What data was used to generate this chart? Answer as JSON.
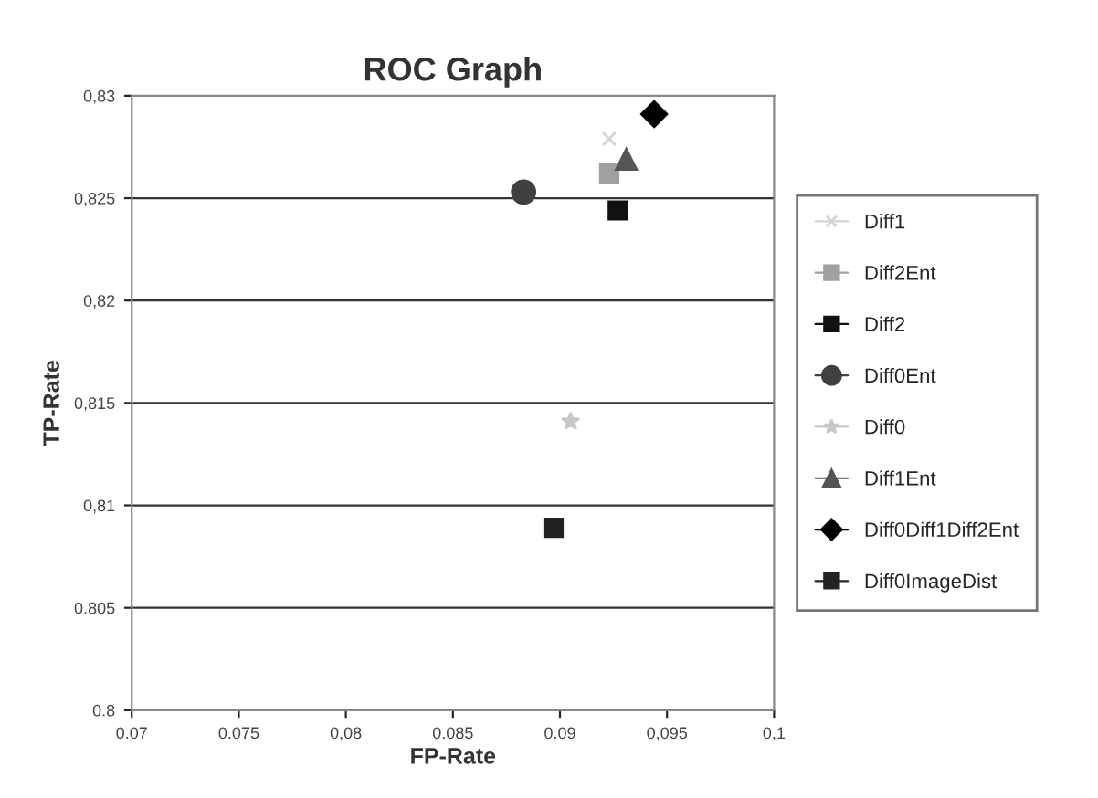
{
  "chart_data": {
    "type": "scatter",
    "title": "ROC Graph",
    "xlabel": "FP-Rate",
    "ylabel": "TP-Rate",
    "xlim": [
      0.07,
      0.1
    ],
    "xticks": [
      {
        "value": 0.07,
        "label": "0.07"
      },
      {
        "value": 0.075,
        "label": "0.075"
      },
      {
        "value": 0.08,
        "label": "0,08"
      },
      {
        "value": 0.085,
        "label": "0.085"
      },
      {
        "value": 0.09,
        "label": "0.09"
      },
      {
        "value": 0.095,
        "label": "0,095"
      },
      {
        "value": 0.1,
        "label": "0,1"
      }
    ],
    "ylim": [
      0.8,
      0.83
    ],
    "yticks": [
      {
        "value": 0.8,
        "label": "0.8"
      },
      {
        "value": 0.805,
        "label": "0.805"
      },
      {
        "value": 0.81,
        "label": "0,81"
      },
      {
        "value": 0.815,
        "label": "0,815"
      },
      {
        "value": 0.82,
        "label": "0,82"
      },
      {
        "value": 0.825,
        "label": "0,825"
      },
      {
        "value": 0.83,
        "label": "0,83"
      }
    ],
    "grid": "y",
    "legend": "right",
    "series": [
      {
        "name": "Diff1",
        "color": "#d4d4d4",
        "marker": "cross",
        "x": [
          0.0923
        ],
        "values": [
          0.8279
        ]
      },
      {
        "name": "Diff2Ent",
        "color": "#a0a0a0",
        "marker": "square",
        "x": [
          0.0923
        ],
        "values": [
          0.8262
        ]
      },
      {
        "name": "Diff2",
        "color": "#111111",
        "marker": "square",
        "x": [
          0.0927
        ],
        "values": [
          0.8244
        ]
      },
      {
        "name": "Diff0Ent",
        "color": "#404040",
        "marker": "circle",
        "x": [
          0.0883
        ],
        "values": [
          0.8253
        ]
      },
      {
        "name": "Diff0",
        "color": "#c8c8c8",
        "marker": "star",
        "x": [
          0.0905
        ],
        "values": [
          0.8141
        ]
      },
      {
        "name": "Diff1Ent",
        "color": "#555555",
        "marker": "triangle",
        "x": [
          0.0931
        ],
        "values": [
          0.8269
        ]
      },
      {
        "name": "Diff0Diff1Diff2Ent",
        "color": "#000000",
        "marker": "diamond",
        "x": [
          0.0944
        ],
        "values": [
          0.8291
        ]
      },
      {
        "name": "Diff0ImageDist",
        "color": "#222222",
        "marker": "square",
        "x": [
          0.0897
        ],
        "values": [
          0.8089
        ]
      }
    ]
  }
}
